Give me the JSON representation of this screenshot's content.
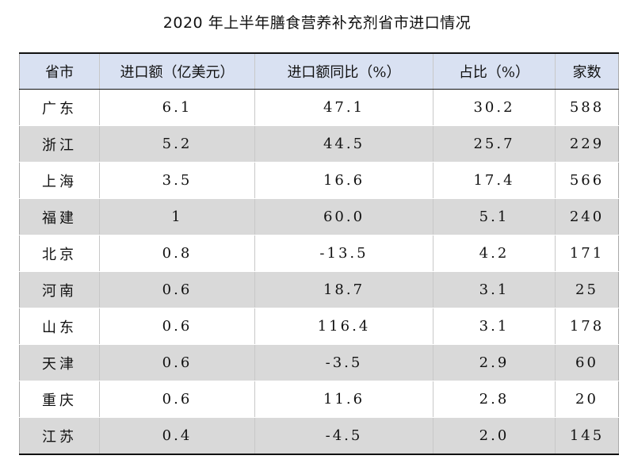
{
  "document": {
    "title": "2020 年上半年膳食营养补充剂省市进口情况"
  },
  "table": {
    "headers": [
      "省市",
      "进口额（亿美元）",
      "进口额同比（%）",
      "占比（%）",
      "家数"
    ],
    "rows": [
      [
        "广东",
        "6.1",
        "47.1",
        "30.2",
        "588"
      ],
      [
        "浙江",
        "5.2",
        "44.5",
        "25.7",
        "229"
      ],
      [
        "上海",
        "3.5",
        "16.6",
        "17.4",
        "566"
      ],
      [
        "福建",
        "1",
        "60.0",
        "5.1",
        "240"
      ],
      [
        "北京",
        "0.8",
        "-13.5",
        "4.2",
        "171"
      ],
      [
        "河南",
        "0.6",
        "18.7",
        "3.1",
        "25"
      ],
      [
        "山东",
        "0.6",
        "116.4",
        "3.1",
        "178"
      ],
      [
        "天津",
        "0.6",
        "-3.5",
        "2.9",
        "60"
      ],
      [
        "重庆",
        "0.6",
        "11.6",
        "2.8",
        "20"
      ],
      [
        "江苏",
        "0.4",
        "-4.5",
        "2.0",
        "145"
      ]
    ]
  },
  "colors": {
    "header_background": "#d9e1f2",
    "striped_row_background": "#d9d9d9",
    "row_background": "#ffffff"
  }
}
